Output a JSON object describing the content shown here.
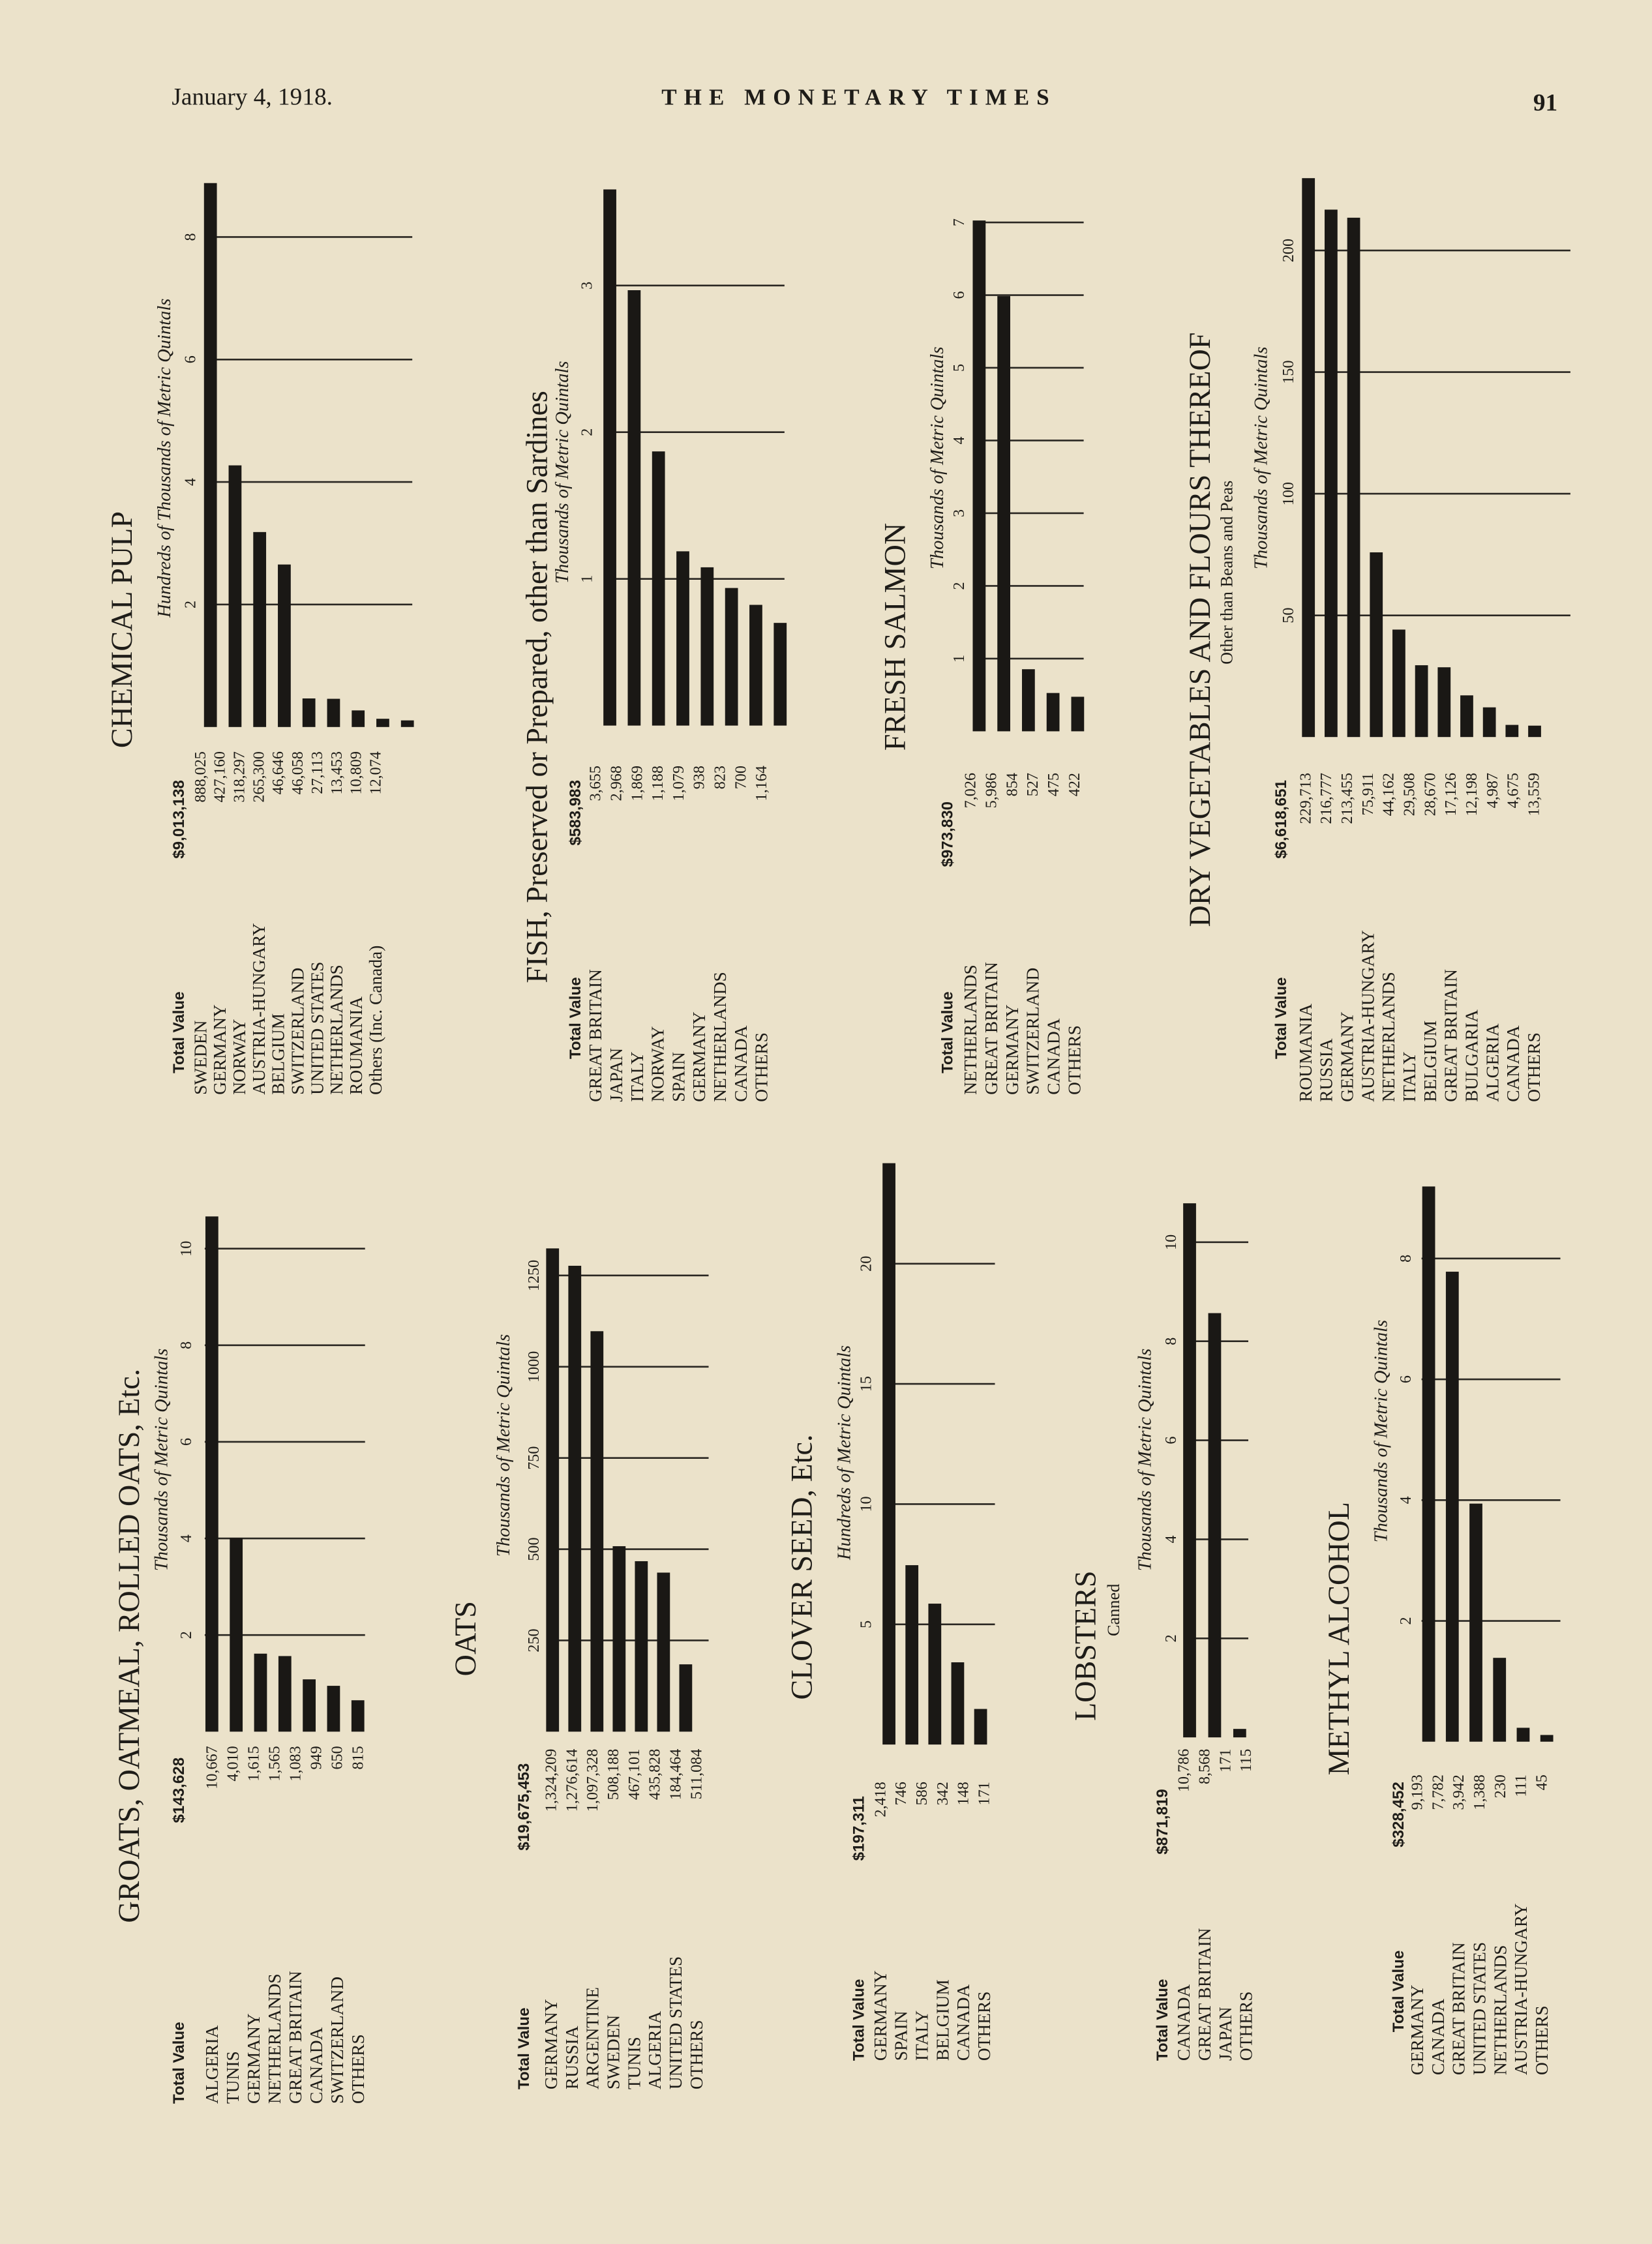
{
  "header": {
    "date": "January 4, 1918.",
    "masthead": "THE MONETARY TIMES",
    "page": "91"
  },
  "chart_data": [
    {
      "type": "bar",
      "title": "GROATS, OATMEAL, ROLLED OATS, Etc.",
      "axis_title": "Thousands of Metric Quintals",
      "total_label": "Total Value",
      "total_value": "$143,628",
      "categories": [
        "ALGERIA",
        "TUNIS",
        "GERMANY",
        "NETHERLANDS",
        "GREAT BRITAIN",
        "CANADA",
        "SWITZERLAND"
      ],
      "values": [
        10.667,
        4.01,
        1.615,
        1.565,
        1.083,
        0.949,
        0.65
      ],
      "value_labels": [
        "10,667",
        "4,010",
        "1,615",
        "1,565",
        "1,083",
        "949",
        "650"
      ],
      "others": {
        "label": "OTHERS",
        "value": "815"
      },
      "ylim": [
        0,
        11
      ],
      "yticks": [
        2,
        4,
        6,
        8,
        10
      ],
      "grid": true,
      "color": "#1a1815"
    },
    {
      "type": "bar",
      "title": "OATS",
      "axis_title": "Thousands of Metric Quintals",
      "total_label": "Total Value",
      "total_value": "$19,675,453",
      "categories": [
        "GERMANY",
        "RUSSIA",
        "ARGENTINE",
        "SWEDEN",
        "TUNIS",
        "ALGERIA",
        "UNITED STATES"
      ],
      "values": [
        1324.209,
        1276.614,
        1097.328,
        508.188,
        467.101,
        435.828,
        184.464
      ],
      "value_labels": [
        "1,324,209",
        "1,276,614",
        "1,097,328",
        "508,188",
        "467,101",
        "435,828",
        "184,464"
      ],
      "others": {
        "label": "OTHERS",
        "value": "511,084"
      },
      "ylim": [
        0,
        1350
      ],
      "yticks": [
        250,
        500,
        750,
        1000,
        1250
      ],
      "grid": true,
      "color": "#1a1815"
    },
    {
      "type": "bar",
      "title": "CLOVER SEED, Etc.",
      "axis_title": "Hundreds of Metric Quintals",
      "total_label": "Total Value",
      "total_value": "$197,311",
      "categories": [
        "GERMANY",
        "SPAIN",
        "ITALY",
        "BELGIUM",
        "CANADA"
      ],
      "values": [
        24.18,
        7.46,
        5.86,
        3.42,
        1.48
      ],
      "value_labels": [
        "2,418",
        "746",
        "586",
        "342",
        "148"
      ],
      "others": {
        "label": "OTHERS",
        "value": "171"
      },
      "ylim": [
        0,
        25
      ],
      "yticks": [
        5,
        10,
        15,
        20
      ],
      "grid": true,
      "color": "#1a1815"
    },
    {
      "type": "bar",
      "title": "LOBSTERS",
      "subtitle": "Canned",
      "axis_title": "Thousands of Metric Quintals",
      "total_label": "Total Value",
      "total_value": "$871,819",
      "categories": [
        "CANADA",
        "GREAT BRITAIN",
        "JAPAN"
      ],
      "values": [
        10.786,
        8.568,
        0.171
      ],
      "value_labels": [
        "10,786",
        "8,568",
        "171"
      ],
      "others": {
        "label": "OTHERS",
        "value": "115"
      },
      "ylim": [
        0,
        11
      ],
      "yticks": [
        2,
        4,
        6,
        8,
        10
      ],
      "grid": true,
      "color": "#1a1815"
    },
    {
      "type": "bar",
      "title": "METHYL ALCOHOL",
      "axis_title": "Thousands of Metric Quintals",
      "total_label": "Total Value",
      "total_value": "$328,452",
      "categories": [
        "GERMANY",
        "CANADA",
        "GREAT BRITAIN",
        "UNITED STATES",
        "NETHERLANDS",
        "AUSTRIA-HUNGARY"
      ],
      "values": [
        9.193,
        7.782,
        3.942,
        1.388,
        0.23,
        0.111
      ],
      "value_labels": [
        "9,193",
        "7,782",
        "3,942",
        "1,388",
        "230",
        "111"
      ],
      "others": {
        "label": "OTHERS",
        "value": "45"
      },
      "ylim": [
        0,
        9.5
      ],
      "yticks": [
        2,
        4,
        6,
        8
      ],
      "grid": true,
      "color": "#1a1815"
    },
    {
      "type": "bar",
      "title": "CHEMICAL PULP",
      "axis_title": "Hundreds of Thousands of Metric Quintals",
      "total_label": "Total Value",
      "total_value": "$9,013,138",
      "categories": [
        "SWEDEN",
        "GERMANY",
        "NORWAY",
        "AUSTRIA-HUNGARY",
        "BELGIUM",
        "SWITZERLAND",
        "UNITED STATES",
        "NETHERLANDS",
        "ROUMANIA"
      ],
      "values": [
        8.88025,
        4.2716,
        3.18297,
        2.653,
        0.46646,
        0.46058,
        0.27113,
        0.13453,
        0.10809
      ],
      "value_labels": [
        "888,025",
        "427,160",
        "318,297",
        "265,300",
        "46,646",
        "46,058",
        "27,113",
        "13,453",
        "10,809"
      ],
      "others": {
        "label": "Others (Inc. Canada)",
        "value": "12,074"
      },
      "ylim": [
        0,
        9
      ],
      "yticks": [
        2,
        4,
        6,
        8
      ],
      "grid": true,
      "color": "#1a1815"
    },
    {
      "type": "bar",
      "title": "FISH, Preserved or Prepared, other than Sardines",
      "axis_title": "Thousands of Metric Quintals",
      "total_label": "Total Value",
      "total_value": "$583,983",
      "categories": [
        "GREAT BRITAIN",
        "JAPAN",
        "ITALY",
        "NORWAY",
        "SPAIN",
        "GERMANY",
        "NETHERLANDS",
        "CANADA"
      ],
      "values": [
        3.655,
        2.968,
        1.869,
        1.188,
        1.079,
        0.938,
        0.823,
        0.7
      ],
      "value_labels": [
        "3,655",
        "2,968",
        "1,869",
        "1,188",
        "1,079",
        "938",
        "823",
        "700"
      ],
      "others": {
        "label": "OTHERS",
        "value": "1,164"
      },
      "ylim": [
        0,
        3.7
      ],
      "yticks": [
        1,
        2,
        3
      ],
      "grid": true,
      "color": "#1a1815"
    },
    {
      "type": "bar",
      "title": "FRESH SALMON",
      "axis_title": "Thousands of Metric Quintals",
      "total_label": "Total Value",
      "total_value": "$973,830",
      "categories": [
        "NETHERLANDS",
        "GREAT BRITAIN",
        "GERMANY",
        "SWITZERLAND",
        "CANADA"
      ],
      "values": [
        7.026,
        5.986,
        0.854,
        0.527,
        0.475
      ],
      "value_labels": [
        "7,026",
        "5,986",
        "854",
        "527",
        "475"
      ],
      "others": {
        "label": "OTHERS",
        "value": "422"
      },
      "ylim": [
        0,
        7.2
      ],
      "yticks": [
        1,
        2,
        3,
        4,
        5,
        6,
        7
      ],
      "grid": true,
      "color": "#1a1815"
    },
    {
      "type": "bar",
      "title": "DRY VEGETABLES AND FLOURS THEREOF",
      "subtitle": "Other than Beans and Peas",
      "axis_title": "Thousands of Metric Quintals",
      "total_label": "Total Value",
      "total_value": "$6,618,651",
      "categories": [
        "ROUMANIA",
        "RUSSIA",
        "GERMANY",
        "AUSTRIA-HUNGARY",
        "NETHERLANDS",
        "ITALY",
        "BELGIUM",
        "GREAT BRITAIN",
        "BULGARIA",
        "ALGERIA",
        "CANADA"
      ],
      "values": [
        229.713,
        216.777,
        213.455,
        75.911,
        44.162,
        29.508,
        28.67,
        17.126,
        12.198,
        4.987,
        4.675
      ],
      "value_labels": [
        "229,713",
        "216,777",
        "213,455",
        "75,911",
        "44,162",
        "29,508",
        "28,670",
        "17,126",
        "12,198",
        "4,987",
        "4,675"
      ],
      "others": {
        "label": "OTHERS",
        "value": "13,559"
      },
      "ylim": [
        0,
        235
      ],
      "yticks": [
        50,
        100,
        150,
        200
      ],
      "grid": true,
      "color": "#1a1815"
    }
  ]
}
